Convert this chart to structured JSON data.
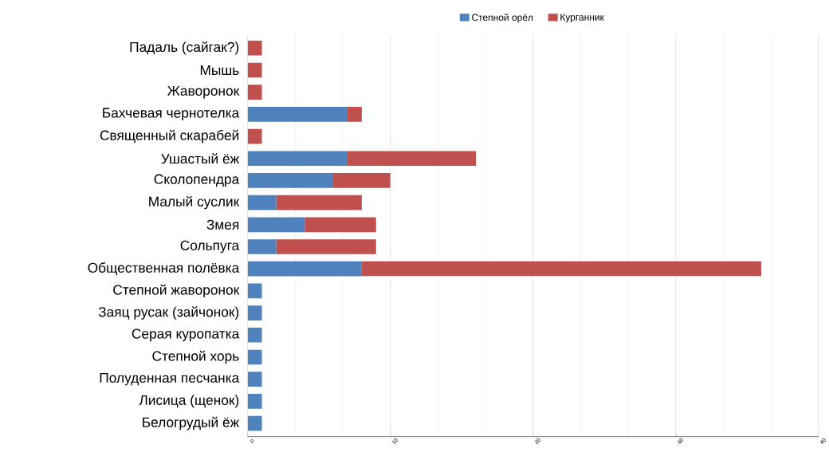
{
  "chart_data": {
    "type": "bar",
    "orientation": "horizontal",
    "stacked": true,
    "categories": [
      "Падаль (сайгак?)",
      "Мышь",
      "Жаворонок",
      "Бахчевая чернотелка",
      "Священный скарабей",
      "Ушастый ёж",
      "Сколопендра",
      "Малый суслик",
      "Змея",
      "Сольпуга",
      "Общественная полёвка",
      "Степной жаворонок",
      "Заяц русак (зайчонок)",
      "Серая куропатка",
      "Степной хорь",
      "Полуденная песчанка",
      "Лисица (щенок)",
      "Белогрудый ёж"
    ],
    "series": [
      {
        "name": "Степной орёл",
        "color": "#4f81bd",
        "values": [
          0,
          0,
          0,
          7,
          0,
          7,
          6,
          2,
          4,
          2,
          8,
          1,
          1,
          1,
          1,
          1,
          1,
          1
        ]
      },
      {
        "name": "Курганник",
        "color": "#c0504d",
        "values": [
          1,
          1,
          1,
          1,
          1,
          9,
          4,
          6,
          5,
          7,
          28,
          0,
          0,
          0,
          0,
          0,
          0,
          0
        ]
      }
    ],
    "xlim": [
      0,
      40
    ],
    "xticks": [
      0,
      10,
      20,
      30,
      40
    ],
    "grid": "x",
    "legend": "top"
  }
}
